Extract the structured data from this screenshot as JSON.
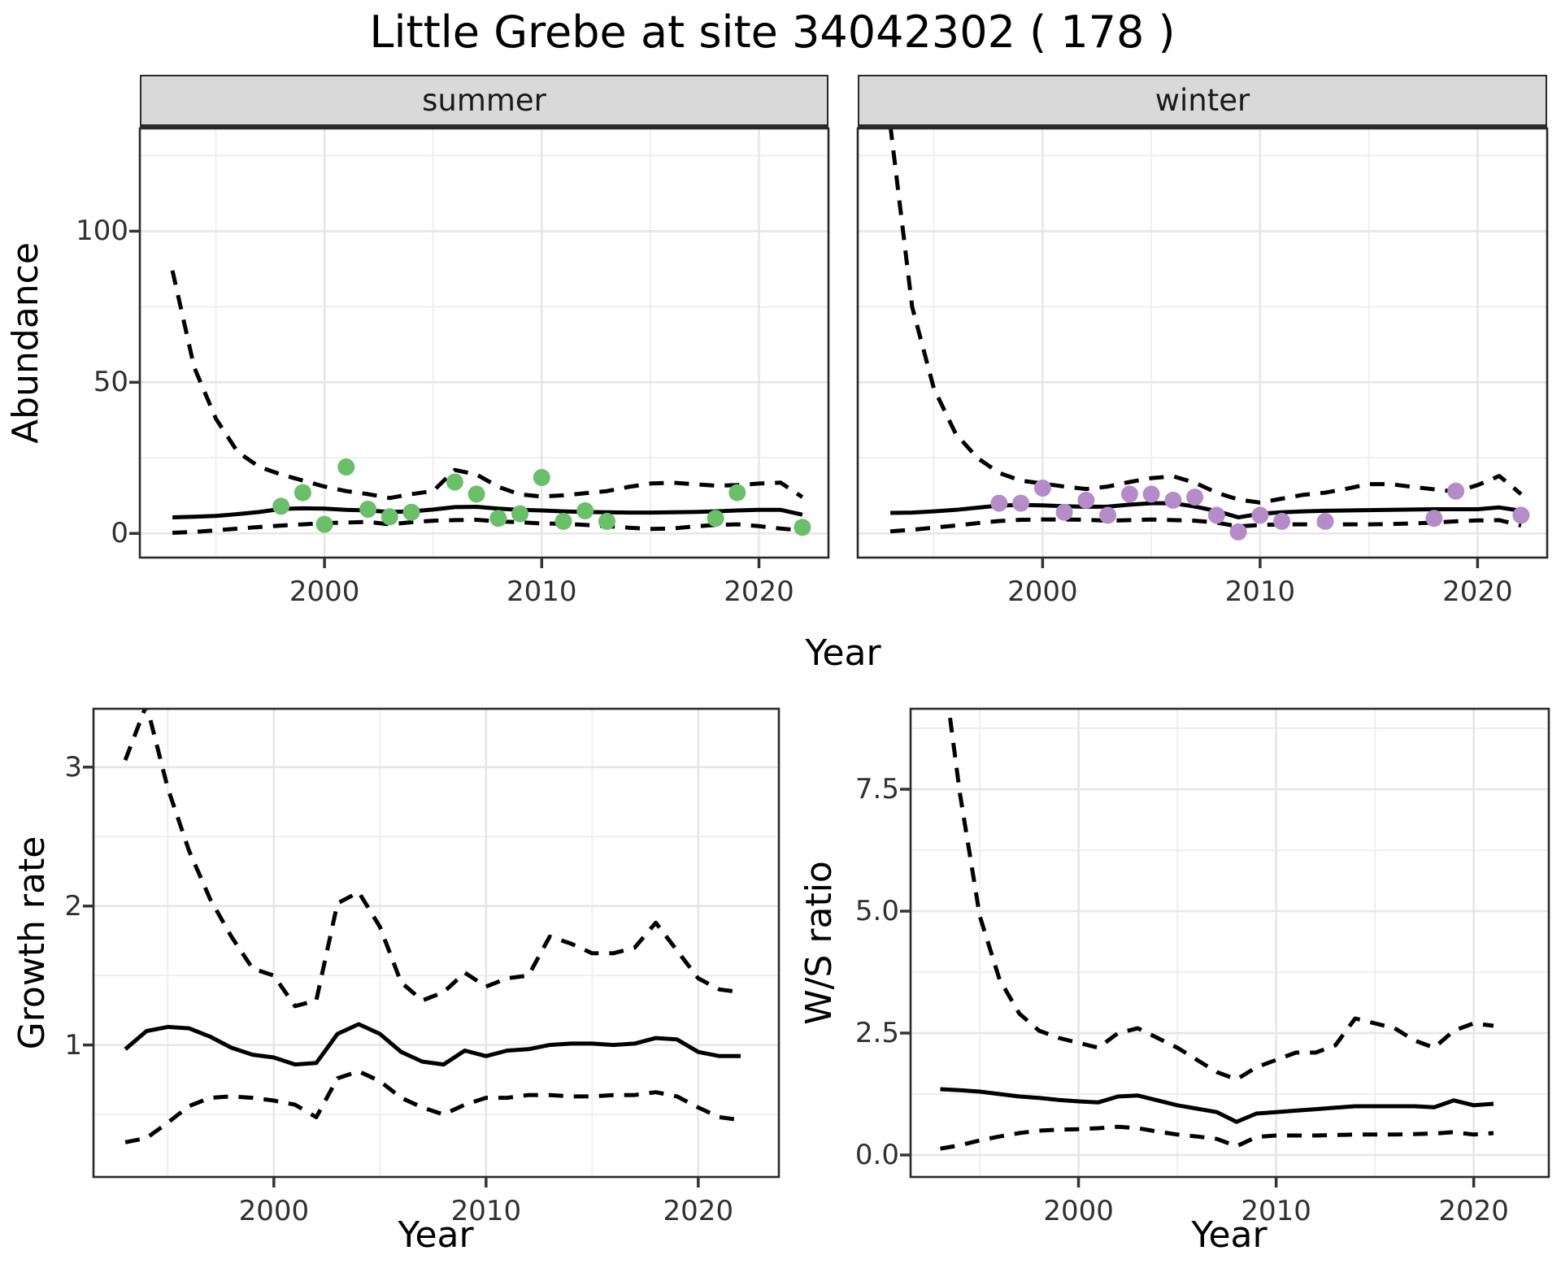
{
  "title": "Little Grebe at site 34042302 ( 178 )",
  "colors": {
    "summer_points": "#6abf69",
    "winter_points": "#b48cc8",
    "line": "#000000",
    "grid_major": "#e6e6e6",
    "grid_minor": "#efefef",
    "panel_border": "#2a2a2a",
    "strip_background": "#d9d9d9",
    "tick_text": "#303030"
  },
  "chart_data": [
    {
      "id": "summer",
      "type": "line",
      "facet_label": "summer",
      "xlabel": "Year",
      "ylabel": "Abundance",
      "x_domain": [
        1991.5,
        2023.2
      ],
      "y_domain": [
        -8,
        134
      ],
      "x_ticks_major": [
        2000,
        2010,
        2020
      ],
      "x_tick_labels": [
        "2000",
        "2010",
        "2020"
      ],
      "x_ticks_minor": [
        1995,
        2005,
        2015
      ],
      "y_ticks_major": [
        0,
        50,
        100
      ],
      "y_tick_labels": [
        "0",
        "50",
        "100"
      ],
      "y_ticks_minor": [
        25,
        75,
        125
      ],
      "show_y_tick_labels": true,
      "years": [
        1993,
        1994,
        1995,
        1996,
        1997,
        1998,
        1999,
        2000,
        2001,
        2002,
        2003,
        2004,
        2005,
        2006,
        2007,
        2008,
        2009,
        2010,
        2011,
        2012,
        2013,
        2014,
        2015,
        2016,
        2017,
        2018,
        2019,
        2020,
        2021,
        2022
      ],
      "series": [
        {
          "name": "median",
          "style": "solid",
          "values": [
            5.3,
            5.5,
            5.8,
            6.4,
            7.1,
            8.1,
            8.3,
            8.2,
            7.8,
            7.6,
            7.1,
            7.3,
            7.9,
            8.7,
            8.8,
            8.2,
            7.8,
            7.6,
            7.3,
            7.1,
            7.0,
            6.9,
            6.9,
            7.0,
            7.1,
            7.3,
            7.6,
            7.8,
            7.8,
            6.2
          ]
        },
        {
          "name": "upper_95ci",
          "style": "dashed",
          "values": [
            87,
            55,
            38,
            27,
            22,
            19.5,
            17.5,
            15.5,
            14,
            13,
            11.7,
            13,
            14,
            21,
            19.5,
            15.4,
            12.9,
            12.2,
            12.6,
            13.3,
            14,
            15.4,
            16.5,
            16.8,
            16.3,
            15.8,
            16,
            16.5,
            16.8,
            12
          ]
        },
        {
          "name": "lower_95ci",
          "style": "dashed",
          "values": [
            0.2,
            0.5,
            1.0,
            1.6,
            2.1,
            2.6,
            3.0,
            3.4,
            3.6,
            3.8,
            3.0,
            3.7,
            4.2,
            4.4,
            4.5,
            4.0,
            3.7,
            3.3,
            3.2,
            2.8,
            2.4,
            1.9,
            1.5,
            1.6,
            2.3,
            2.8,
            3.0,
            2.4,
            1.6,
            1.0
          ]
        }
      ],
      "points": {
        "name": "observed-counts-summer",
        "color": "#6abf69",
        "years": [
          1998,
          1999,
          2000,
          2001,
          2002,
          2003,
          2004,
          2006,
          2007,
          2008,
          2009,
          2010,
          2011,
          2012,
          2013,
          2018,
          2019,
          2022
        ],
        "values": [
          9,
          13.5,
          3,
          22,
          8,
          5.5,
          7,
          17,
          13,
          5,
          6.5,
          18.5,
          4,
          7.5,
          4,
          5,
          13.5,
          2
        ]
      }
    },
    {
      "id": "winter",
      "type": "line",
      "facet_label": "winter",
      "xlabel": "Year",
      "ylabel": "",
      "x_domain": [
        1991.5,
        2023.2
      ],
      "y_domain": [
        -8,
        134
      ],
      "x_ticks_major": [
        2000,
        2010,
        2020
      ],
      "x_tick_labels": [
        "2000",
        "2010",
        "2020"
      ],
      "x_ticks_minor": [
        1995,
        2005,
        2015
      ],
      "y_ticks_major": [
        0,
        50,
        100
      ],
      "y_tick_labels": [
        "0",
        "50",
        "100"
      ],
      "y_ticks_minor": [
        25,
        75,
        125
      ],
      "show_y_tick_labels": false,
      "years": [
        1993,
        1994,
        1995,
        1996,
        1997,
        1998,
        1999,
        2000,
        2001,
        2002,
        2003,
        2004,
        2005,
        2006,
        2007,
        2008,
        2009,
        2010,
        2011,
        2012,
        2013,
        2014,
        2015,
        2016,
        2017,
        2018,
        2019,
        2020,
        2021,
        2022
      ],
      "series": [
        {
          "name": "median",
          "style": "solid",
          "values": [
            6.8,
            6.9,
            7.3,
            7.8,
            8.5,
            9.2,
            9.4,
            9.3,
            9.0,
            8.8,
            8.9,
            9.5,
            10.0,
            10.0,
            8.9,
            7.4,
            5.3,
            6.5,
            7.0,
            7.3,
            7.5,
            7.6,
            7.7,
            7.8,
            7.9,
            8.0,
            8.0,
            8.0,
            8.6,
            7.5
          ]
        },
        {
          "name": "upper_95ci",
          "style": "dashed",
          "values": [
            135,
            75,
            48,
            33,
            25,
            20,
            17.5,
            16.5,
            15.5,
            14.7,
            15.5,
            17,
            18.3,
            18.9,
            16.8,
            13.5,
            11.2,
            10.2,
            11.5,
            12.8,
            13.5,
            14.8,
            16.3,
            16.3,
            15.4,
            14.6,
            13.8,
            16,
            19,
            13
          ]
        },
        {
          "name": "lower_95ci",
          "style": "dashed",
          "values": [
            0.7,
            1.2,
            1.9,
            2.6,
            3.4,
            4.1,
            4.5,
            4.6,
            4.6,
            4.5,
            4.2,
            4.4,
            4.6,
            4.4,
            4.2,
            3.6,
            2.3,
            2.8,
            3.0,
            3.0,
            3.0,
            3.0,
            3.0,
            3.1,
            3.3,
            3.6,
            4.0,
            4.3,
            4.4,
            2.6
          ]
        }
      ],
      "points": {
        "name": "observed-counts-winter",
        "color": "#b48cc8",
        "years": [
          1998,
          1999,
          2000,
          2001,
          2002,
          2003,
          2004,
          2005,
          2006,
          2007,
          2008,
          2009,
          2010,
          2011,
          2013,
          2018,
          2019,
          2022
        ],
        "values": [
          10,
          10,
          15,
          7,
          11,
          6,
          13,
          13,
          11,
          12,
          6,
          0.5,
          6,
          4,
          4,
          5,
          14,
          6
        ]
      }
    },
    {
      "id": "growth",
      "type": "line",
      "facet_label": "",
      "xlabel": "Year",
      "ylabel": "Growth rate",
      "x_domain": [
        1991.5,
        2023.8
      ],
      "y_domain": [
        0.05,
        3.42
      ],
      "x_ticks_major": [
        2000,
        2010,
        2020
      ],
      "x_tick_labels": [
        "2000",
        "2010",
        "2020"
      ],
      "x_ticks_minor": [
        1995,
        2005,
        2015
      ],
      "y_ticks_major": [
        1,
        2,
        3
      ],
      "y_tick_labels": [
        "1",
        "2",
        "3"
      ],
      "y_ticks_minor": [
        0.5,
        1.5,
        2.5
      ],
      "show_y_tick_labels": true,
      "years": [
        1993,
        1994,
        1995,
        1996,
        1997,
        1998,
        1999,
        2000,
        2001,
        2002,
        2003,
        2004,
        2005,
        2006,
        2007,
        2008,
        2009,
        2010,
        2011,
        2012,
        2013,
        2014,
        2015,
        2016,
        2017,
        2018,
        2019,
        2020,
        2021,
        2022
      ],
      "series": [
        {
          "name": "median",
          "style": "solid",
          "values": [
            0.97,
            1.1,
            1.13,
            1.12,
            1.06,
            0.98,
            0.93,
            0.91,
            0.86,
            0.87,
            1.08,
            1.15,
            1.08,
            0.95,
            0.88,
            0.86,
            0.96,
            0.92,
            0.96,
            0.97,
            1.0,
            1.01,
            1.01,
            1.0,
            1.01,
            1.05,
            1.04,
            0.95,
            0.92,
            0.92
          ]
        },
        {
          "name": "upper_95ci",
          "style": "dashed",
          "values": [
            3.05,
            3.45,
            2.85,
            2.4,
            2.05,
            1.78,
            1.55,
            1.5,
            1.28,
            1.32,
            2.02,
            2.1,
            1.85,
            1.45,
            1.32,
            1.38,
            1.52,
            1.42,
            1.48,
            1.5,
            1.78,
            1.73,
            1.66,
            1.66,
            1.7,
            1.88,
            1.68,
            1.48,
            1.4,
            1.38
          ]
        },
        {
          "name": "lower_95ci",
          "style": "dashed",
          "values": [
            0.3,
            0.33,
            0.44,
            0.56,
            0.62,
            0.63,
            0.62,
            0.6,
            0.57,
            0.48,
            0.76,
            0.81,
            0.74,
            0.62,
            0.55,
            0.5,
            0.57,
            0.62,
            0.62,
            0.64,
            0.64,
            0.63,
            0.63,
            0.64,
            0.64,
            0.66,
            0.63,
            0.55,
            0.48,
            0.46
          ]
        }
      ],
      "points": null
    },
    {
      "id": "ws",
      "type": "line",
      "facet_label": "",
      "xlabel": "Year",
      "ylabel": "W/S ratio",
      "x_domain": [
        1991.5,
        2023.8
      ],
      "y_domain": [
        -0.45,
        9.15
      ],
      "x_ticks_major": [
        2000,
        2010,
        2020
      ],
      "x_tick_labels": [
        "2000",
        "2010",
        "2020"
      ],
      "x_ticks_minor": [
        1995,
        2005,
        2015
      ],
      "y_ticks_major": [
        0,
        2.5,
        5,
        7.5
      ],
      "y_tick_labels": [
        "0.0",
        "2.5",
        "5.0",
        "7.5"
      ],
      "y_ticks_minor": [
        1.25,
        3.75,
        6.25,
        8.75
      ],
      "show_y_tick_labels": true,
      "years": [
        1993,
        1994,
        1995,
        1996,
        1997,
        1998,
        1999,
        2000,
        2001,
        2002,
        2003,
        2004,
        2005,
        2006,
        2007,
        2008,
        2009,
        2010,
        2011,
        2012,
        2013,
        2014,
        2015,
        2016,
        2017,
        2018,
        2019,
        2020,
        2021
      ],
      "series": [
        {
          "name": "median",
          "style": "solid",
          "values": [
            1.35,
            1.33,
            1.3,
            1.25,
            1.2,
            1.17,
            1.13,
            1.1,
            1.08,
            1.2,
            1.22,
            1.12,
            1.02,
            0.95,
            0.88,
            0.68,
            0.85,
            0.88,
            0.91,
            0.94,
            0.97,
            1.0,
            1.0,
            1.0,
            1.0,
            0.98,
            1.12,
            1.02,
            1.05
          ]
        },
        {
          "name": "upper_95ci",
          "style": "dashed",
          "values": [
            10.5,
            7.4,
            4.9,
            3.6,
            2.9,
            2.55,
            2.4,
            2.3,
            2.2,
            2.5,
            2.6,
            2.4,
            2.2,
            1.95,
            1.7,
            1.55,
            1.8,
            1.95,
            2.1,
            2.1,
            2.25,
            2.8,
            2.7,
            2.6,
            2.35,
            2.2,
            2.55,
            2.7,
            2.65
          ]
        },
        {
          "name": "lower_95ci",
          "style": "dashed",
          "values": [
            0.13,
            0.2,
            0.3,
            0.38,
            0.45,
            0.5,
            0.52,
            0.53,
            0.55,
            0.58,
            0.55,
            0.48,
            0.42,
            0.38,
            0.33,
            0.18,
            0.37,
            0.4,
            0.4,
            0.4,
            0.41,
            0.42,
            0.42,
            0.42,
            0.43,
            0.44,
            0.47,
            0.42,
            0.45
          ]
        }
      ],
      "points": null
    }
  ]
}
